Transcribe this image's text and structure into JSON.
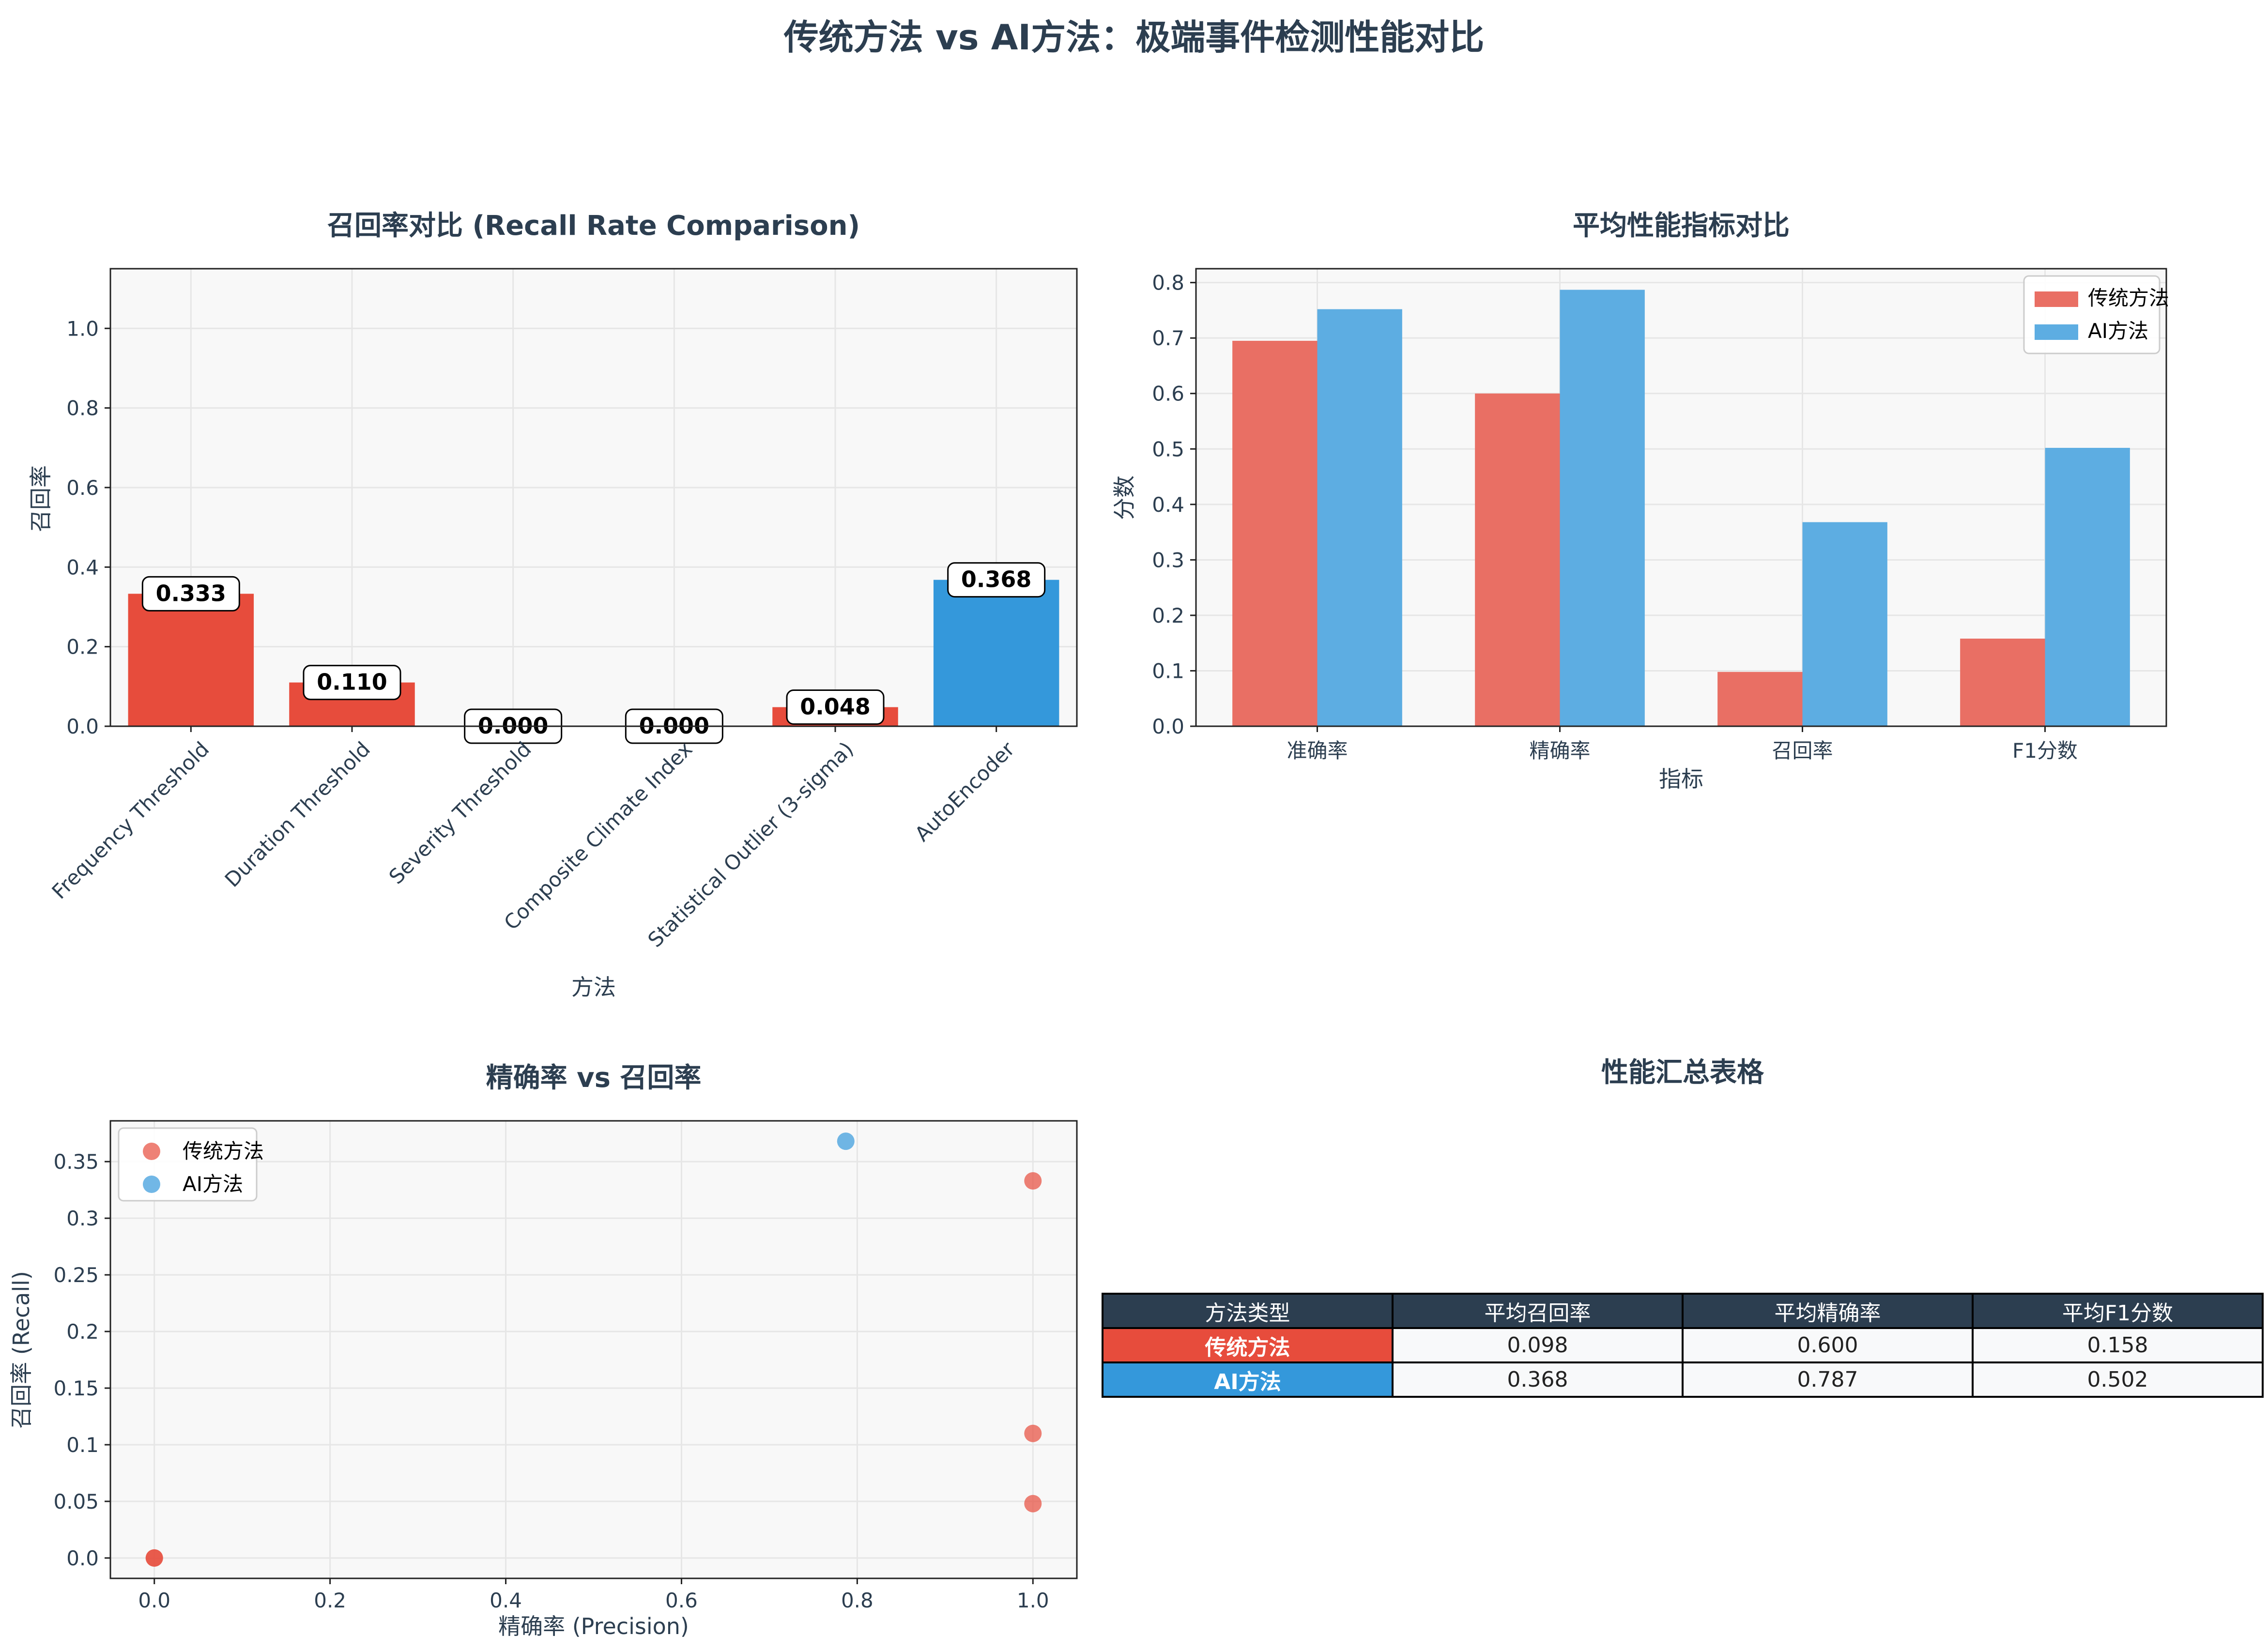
{
  "title": "传统方法 vs AI方法：极端事件检测性能对比",
  "chart_data": [
    {
      "type": "bar",
      "title": "召回率对比 (Recall Rate Comparison)",
      "xlabel": "方法",
      "ylabel": "召回率",
      "categories": [
        "Frequency Threshold",
        "Duration Threshold",
        "Severity Threshold",
        "Composite Climate Index",
        "Statistical Outlier (3-sigma)",
        "AutoEncoder"
      ],
      "values": [
        0.333,
        0.11,
        0.0,
        0.0,
        0.048,
        0.368
      ],
      "value_labels": [
        "0.333",
        "0.110",
        "0.000",
        "0.000",
        "0.048",
        "0.368"
      ],
      "method_group": [
        "traditional",
        "traditional",
        "traditional",
        "traditional",
        "traditional",
        "ai"
      ],
      "ylim": [
        0,
        1.15
      ],
      "yticks": [
        0.0,
        0.2,
        0.4,
        0.6,
        0.8,
        1.0
      ],
      "grid": true
    },
    {
      "type": "bar",
      "title": "平均性能指标对比",
      "xlabel": "指标",
      "ylabel": "分数",
      "categories": [
        "准确率",
        "精确率",
        "召回率",
        "F1分数"
      ],
      "series": [
        {
          "name": "传统方法",
          "values": [
            0.695,
            0.6,
            0.098,
            0.158
          ]
        },
        {
          "name": "AI方法",
          "values": [
            0.752,
            0.787,
            0.368,
            0.502
          ]
        }
      ],
      "ylim": [
        0,
        0.825
      ],
      "yticks": [
        0.0,
        0.1,
        0.2,
        0.3,
        0.4,
        0.5,
        0.6,
        0.7,
        0.8
      ],
      "legend": "top-right",
      "grid": true
    },
    {
      "type": "scatter",
      "title": "精确率 vs 召回率",
      "xlabel": "精确率 (Precision)",
      "ylabel": "召回率 (Recall)",
      "series": [
        {
          "name": "传统方法",
          "points": [
            [
              1.0,
              0.333
            ],
            [
              1.0,
              0.11
            ],
            [
              0.0,
              0.0
            ],
            [
              0.0,
              0.0
            ],
            [
              1.0,
              0.048
            ]
          ]
        },
        {
          "name": "AI方法",
          "points": [
            [
              0.787,
              0.368
            ]
          ]
        }
      ],
      "xlim": [
        -0.05,
        1.05
      ],
      "ylim": [
        -0.018,
        0.386
      ],
      "xticks": [
        0.0,
        0.2,
        0.4,
        0.6,
        0.8,
        1.0
      ],
      "yticks": [
        0.0,
        0.05,
        0.1,
        0.15,
        0.2,
        0.25,
        0.3,
        0.35
      ],
      "legend": "top-left",
      "grid": true
    },
    {
      "type": "table",
      "title": "性能汇总表格",
      "columns": [
        "方法类型",
        "平均召回率",
        "平均精确率",
        "平均F1分数"
      ],
      "rows": [
        [
          "传统方法",
          "0.098",
          "0.600",
          "0.158"
        ],
        [
          "AI方法",
          "0.368",
          "0.787",
          "0.502"
        ]
      ]
    }
  ],
  "colors": {
    "traditional": "#e74c3c",
    "ai": "#3498db",
    "traditional_light": "#e96f64",
    "ai_light": "#5dade2",
    "panel_bg": "#f8f8f8",
    "grid": "#e6e6e6",
    "text": "#2c3e50",
    "table_header": "#2c3e50"
  }
}
